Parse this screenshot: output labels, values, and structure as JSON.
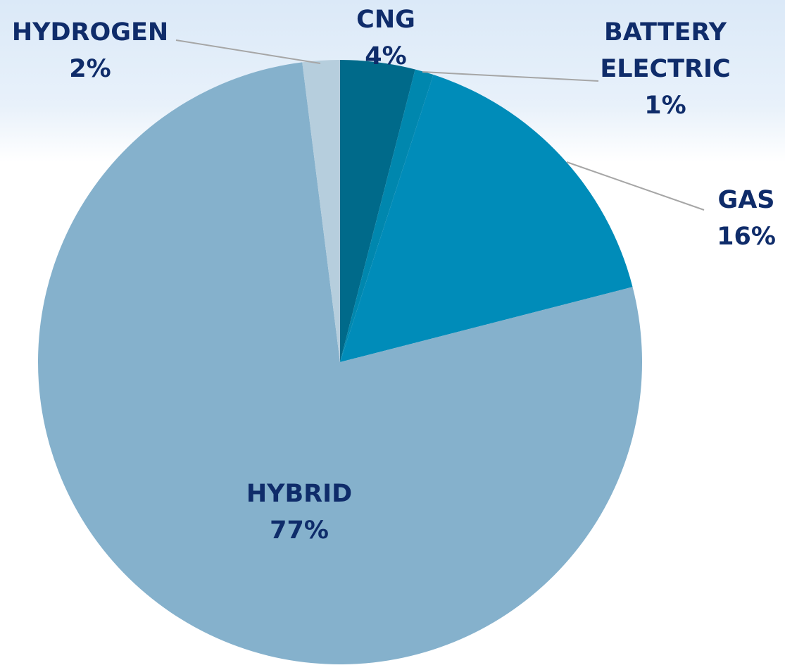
{
  "chart_data": {
    "type": "pie",
    "categories": [
      "CNG",
      "BATTERY ELECTRIC",
      "GAS",
      "HYBRID",
      "HYDROGEN"
    ],
    "values": [
      4,
      1,
      16,
      77,
      2
    ],
    "value_labels": [
      "4%",
      "1%",
      "16%",
      "77%",
      "2%"
    ],
    "colors": [
      "#006a8a",
      "#0087ae",
      "#008cb9",
      "#85b1cc",
      "#b6cedd"
    ]
  }
}
